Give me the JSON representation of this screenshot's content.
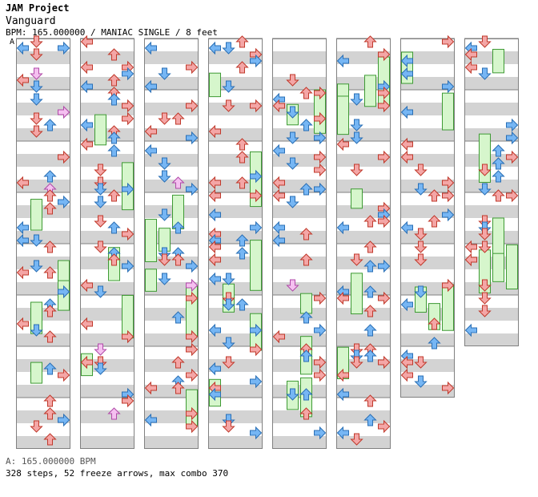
{
  "song": {
    "artist": "JAM Project",
    "title": "Vanguard",
    "info": "BPM: 165.000000 / MANIAC SINGLE / 8 feet",
    "section_marker": "A"
  },
  "footer": {
    "bpm_line": "A: 165.000000 BPM",
    "stats_line": "328 steps, 52 freeze arrows, max combo 370"
  },
  "chart_data": {
    "type": "step-chart",
    "stats": {
      "steps": 328,
      "freeze_arrows": 52,
      "max_combo": 370
    },
    "bpm": 165.0,
    "difficulty": "MANIAC",
    "mode": "SINGLE",
    "feet": 8,
    "columns": 8,
    "measures_per_column": 8,
    "lanes": [
      "left",
      "down",
      "up",
      "right"
    ],
    "colors": {
      "quarter": "#f4a6a6",
      "quarter_stroke": "#c0392b",
      "eighth": "#76b6f4",
      "eighth_stroke": "#2a6fb5",
      "sixteenth": "#f5c0f0",
      "sixteenth_stroke": "#b04aa8",
      "freeze": "#d6f6cc",
      "freeze_stroke": "#3e9a34",
      "stripe": "#d3d3d3",
      "border": "#808080"
    }
  }
}
